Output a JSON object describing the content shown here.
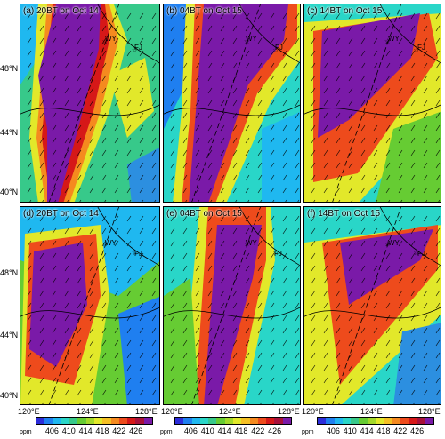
{
  "panels": [
    {
      "id": "a",
      "label": "(a) 20BT on Oct 14"
    },
    {
      "id": "b",
      "label": "(b) 04BT on Oct 15"
    },
    {
      "id": "c",
      "label": "(c) 14BT on Oct 15"
    },
    {
      "id": "d",
      "label": "(d) 20BT on Oct 14"
    },
    {
      "id": "e",
      "label": "(e) 04BT on Oct 15"
    },
    {
      "id": "f",
      "label": "(f) 14BT on Oct 15"
    }
  ],
  "cities": {
    "city1": "WY",
    "city2": "FJ"
  },
  "y_axis": {
    "ticks": [
      "48°N",
      "44°N",
      "40°N"
    ]
  },
  "x_axis": {
    "ticks": [
      "120°E",
      "124°E",
      "128°E"
    ]
  },
  "colorbar": {
    "unit": "ppm",
    "ticks": [
      "406",
      "410",
      "414",
      "418",
      "422",
      "426"
    ],
    "colors": [
      "#2c2cd9",
      "#1f7ff0",
      "#1fb8f0",
      "#29d6c8",
      "#37c98a",
      "#66cc33",
      "#a3d92a",
      "#e2e82a",
      "#f5c023",
      "#f58a1f",
      "#ee4b1c",
      "#d61818",
      "#a8103a",
      "#7a1aa8"
    ]
  }
}
